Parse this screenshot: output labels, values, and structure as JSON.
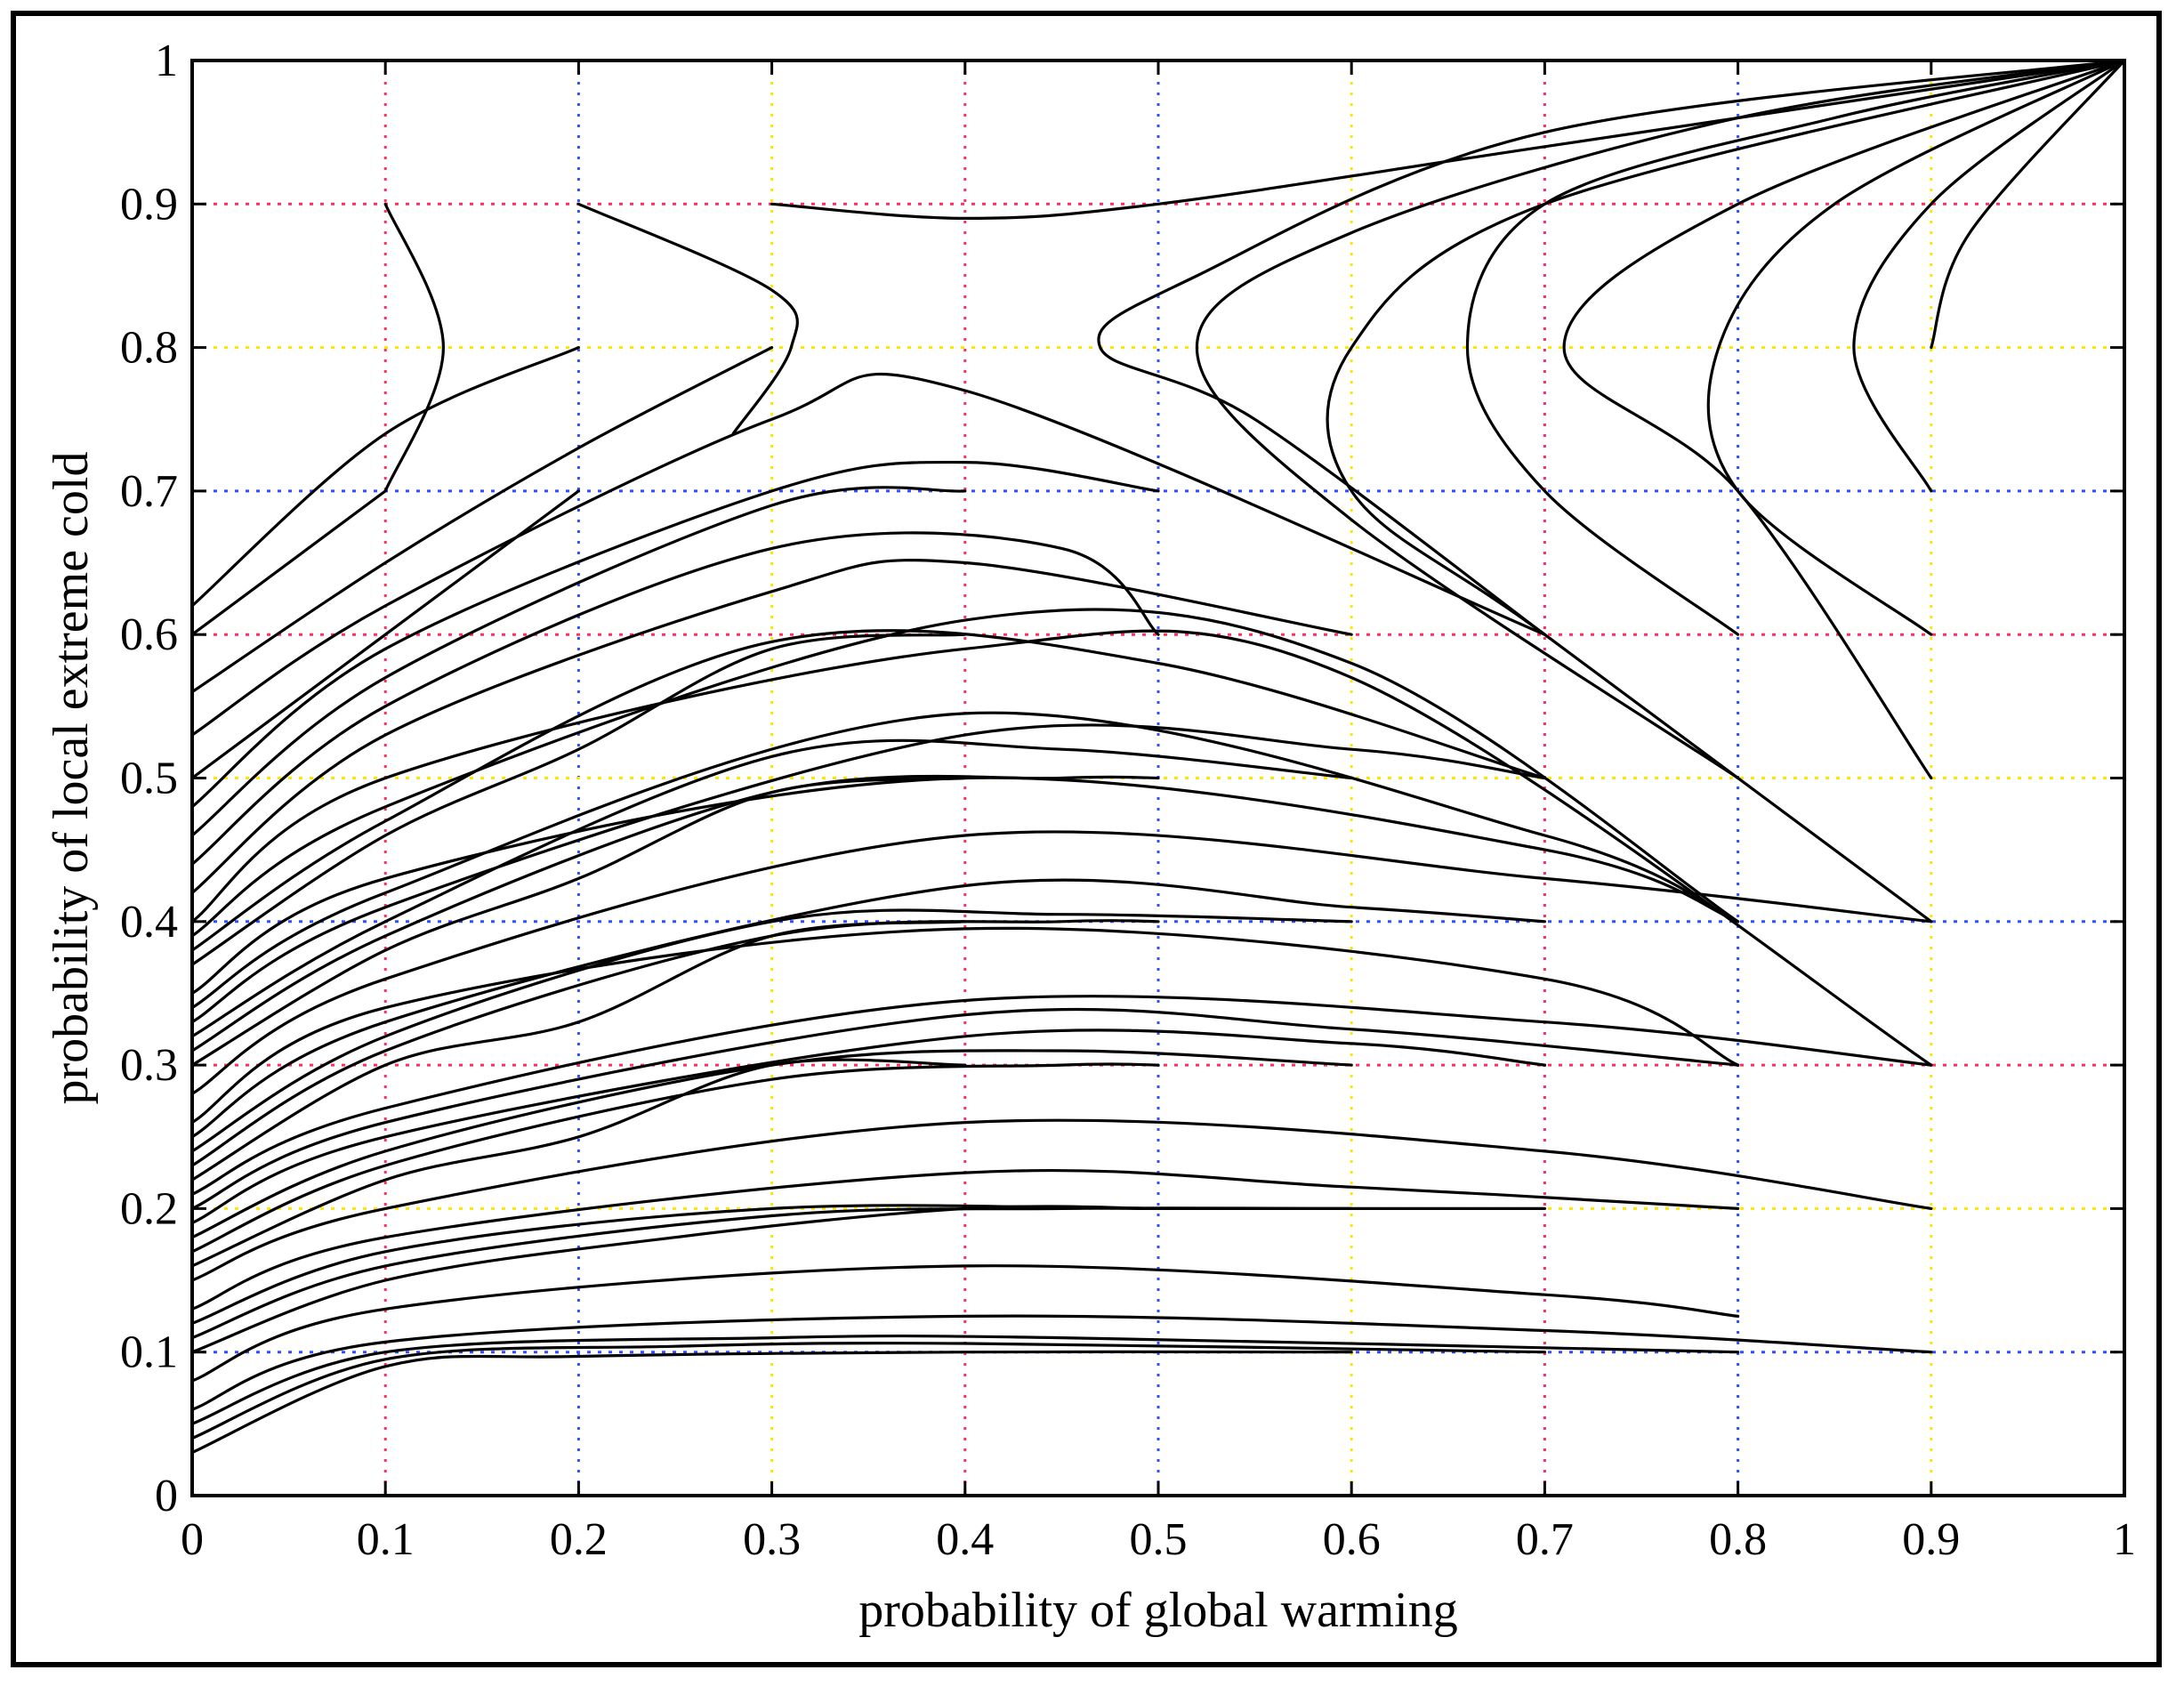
{
  "chart_data": {
    "type": "line",
    "title": "",
    "xlabel": "probability of global warming",
    "ylabel": "probability of local extreme cold",
    "xlim": [
      0,
      1
    ],
    "ylim": [
      0,
      1
    ],
    "x_ticks": [
      "0",
      "0.1",
      "0.2",
      "0.3",
      "0.4",
      "0.5",
      "0.6",
      "0.7",
      "0.8",
      "0.9",
      "1"
    ],
    "y_ticks": [
      "0",
      "0.1",
      "0.2",
      "0.3",
      "0.4",
      "0.5",
      "0.6",
      "0.7",
      "0.8",
      "0.9",
      "1"
    ],
    "grid": "dotted colored",
    "grid_colors": [
      "#ffe600",
      "#ff3060",
      "#3050ff"
    ],
    "legend": "none",
    "line_color": "#000000",
    "series": [
      {
        "points": [
          [
            0.0,
            0.03
          ],
          [
            0.1,
            0.09
          ],
          [
            0.2,
            0.097
          ],
          [
            0.4,
            0.1
          ],
          [
            0.6,
            0.1
          ]
        ]
      },
      {
        "points": [
          [
            0.0,
            0.04
          ],
          [
            0.1,
            0.095
          ],
          [
            0.25,
            0.104
          ],
          [
            0.4,
            0.106
          ],
          [
            0.7,
            0.1
          ]
        ]
      },
      {
        "points": [
          [
            0.0,
            0.05
          ],
          [
            0.1,
            0.1
          ],
          [
            0.3,
            0.11
          ],
          [
            0.45,
            0.11
          ],
          [
            0.8,
            0.1
          ]
        ]
      },
      {
        "points": [
          [
            0.0,
            0.06
          ],
          [
            0.1,
            0.107
          ],
          [
            0.4,
            0.125
          ],
          [
            0.7,
            0.115
          ],
          [
            0.9,
            0.1
          ]
        ]
      },
      {
        "points": [
          [
            0.0,
            0.08
          ],
          [
            0.1,
            0.13
          ],
          [
            0.4,
            0.16
          ],
          [
            0.7,
            0.14
          ],
          [
            0.8,
            0.125
          ]
        ]
      },
      {
        "points": [
          [
            0.0,
            0.1
          ],
          [
            0.1,
            0.15
          ],
          [
            0.25,
            0.18
          ],
          [
            0.4,
            0.2
          ],
          [
            0.5,
            0.2
          ]
        ]
      },
      {
        "points": [
          [
            0.0,
            0.11
          ],
          [
            0.1,
            0.16
          ],
          [
            0.3,
            0.195
          ],
          [
            0.45,
            0.2
          ],
          [
            0.6,
            0.2
          ]
        ]
      },
      {
        "points": [
          [
            0.0,
            0.12
          ],
          [
            0.1,
            0.17
          ],
          [
            0.3,
            0.2
          ],
          [
            0.5,
            0.2
          ],
          [
            0.7,
            0.2
          ]
        ]
      },
      {
        "points": [
          [
            0.0,
            0.13
          ],
          [
            0.1,
            0.18
          ],
          [
            0.4,
            0.225
          ],
          [
            0.6,
            0.215
          ],
          [
            0.8,
            0.2
          ]
        ]
      },
      {
        "points": [
          [
            0.0,
            0.15
          ],
          [
            0.1,
            0.2
          ],
          [
            0.4,
            0.26
          ],
          [
            0.7,
            0.24
          ],
          [
            0.9,
            0.2
          ]
        ]
      },
      {
        "points": [
          [
            0.0,
            0.16
          ],
          [
            0.1,
            0.22
          ],
          [
            0.2,
            0.25
          ],
          [
            0.3,
            0.3
          ],
          [
            0.4,
            0.3
          ]
        ]
      },
      {
        "points": [
          [
            0.0,
            0.17
          ],
          [
            0.1,
            0.23
          ],
          [
            0.3,
            0.29
          ],
          [
            0.45,
            0.3
          ],
          [
            0.5,
            0.3
          ]
        ]
      },
      {
        "points": [
          [
            0.0,
            0.18
          ],
          [
            0.1,
            0.24
          ],
          [
            0.3,
            0.3
          ],
          [
            0.45,
            0.31
          ],
          [
            0.6,
            0.3
          ]
        ]
      },
      {
        "points": [
          [
            0.0,
            0.19
          ],
          [
            0.1,
            0.25
          ],
          [
            0.4,
            0.32
          ],
          [
            0.6,
            0.315
          ],
          [
            0.7,
            0.3
          ]
        ]
      },
      {
        "points": [
          [
            0.0,
            0.2
          ],
          [
            0.1,
            0.26
          ],
          [
            0.4,
            0.335
          ],
          [
            0.6,
            0.325
          ],
          [
            0.8,
            0.3
          ]
        ]
      },
      {
        "points": [
          [
            0.0,
            0.21
          ],
          [
            0.1,
            0.27
          ],
          [
            0.4,
            0.345
          ],
          [
            0.7,
            0.33
          ],
          [
            0.9,
            0.3
          ]
        ]
      },
      {
        "points": [
          [
            0.0,
            0.22
          ],
          [
            0.1,
            0.3
          ],
          [
            0.2,
            0.33
          ],
          [
            0.3,
            0.39
          ],
          [
            0.4,
            0.4
          ]
        ]
      },
      {
        "points": [
          [
            0.0,
            0.23
          ],
          [
            0.1,
            0.31
          ],
          [
            0.3,
            0.39
          ],
          [
            0.45,
            0.4
          ],
          [
            0.5,
            0.4
          ]
        ]
      },
      {
        "points": [
          [
            0.0,
            0.24
          ],
          [
            0.1,
            0.32
          ],
          [
            0.3,
            0.4
          ],
          [
            0.45,
            0.405
          ],
          [
            0.6,
            0.4
          ]
        ]
      },
      {
        "points": [
          [
            0.0,
            0.25
          ],
          [
            0.1,
            0.33
          ],
          [
            0.4,
            0.425
          ],
          [
            0.6,
            0.41
          ],
          [
            0.7,
            0.4
          ]
        ]
      },
      {
        "points": [
          [
            0.0,
            0.26
          ],
          [
            0.1,
            0.34
          ],
          [
            0.4,
            0.395
          ],
          [
            0.7,
            0.36
          ],
          [
            0.8,
            0.3
          ]
        ]
      },
      {
        "points": [
          [
            0.0,
            0.28
          ],
          [
            0.1,
            0.36
          ],
          [
            0.4,
            0.46
          ],
          [
            0.7,
            0.43
          ],
          [
            0.9,
            0.4
          ]
        ]
      },
      {
        "points": [
          [
            0.0,
            0.3
          ],
          [
            0.1,
            0.38
          ],
          [
            0.2,
            0.43
          ],
          [
            0.3,
            0.49
          ],
          [
            0.4,
            0.5
          ]
        ]
      },
      {
        "points": [
          [
            0.0,
            0.31
          ],
          [
            0.1,
            0.39
          ],
          [
            0.3,
            0.49
          ],
          [
            0.45,
            0.5
          ],
          [
            0.5,
            0.5
          ]
        ]
      },
      {
        "points": [
          [
            0.0,
            0.32
          ],
          [
            0.1,
            0.4
          ],
          [
            0.3,
            0.515
          ],
          [
            0.45,
            0.52
          ],
          [
            0.6,
            0.5
          ]
        ]
      },
      {
        "points": [
          [
            0.0,
            0.33
          ],
          [
            0.1,
            0.41
          ],
          [
            0.4,
            0.53
          ],
          [
            0.6,
            0.52
          ],
          [
            0.7,
            0.5
          ]
        ]
      },
      {
        "points": [
          [
            0.0,
            0.34
          ],
          [
            0.1,
            0.42
          ],
          [
            0.4,
            0.545
          ],
          [
            0.7,
            0.46
          ],
          [
            0.8,
            0.4
          ]
        ]
      },
      {
        "points": [
          [
            0.0,
            0.35
          ],
          [
            0.1,
            0.43
          ],
          [
            0.4,
            0.5
          ],
          [
            0.7,
            0.45
          ],
          [
            0.8,
            0.4
          ]
        ]
      },
      {
        "points": [
          [
            0.0,
            0.37
          ],
          [
            0.1,
            0.46
          ],
          [
            0.2,
            0.52
          ],
          [
            0.3,
            0.59
          ],
          [
            0.4,
            0.6
          ]
        ]
      },
      {
        "points": [
          [
            0.0,
            0.38
          ],
          [
            0.1,
            0.47
          ],
          [
            0.3,
            0.595
          ],
          [
            0.5,
            0.58
          ],
          [
            0.7,
            0.5
          ]
        ]
      },
      {
        "points": [
          [
            0.0,
            0.39
          ],
          [
            0.1,
            0.48
          ],
          [
            0.4,
            0.61
          ],
          [
            0.6,
            0.58
          ],
          [
            0.8,
            0.4
          ]
        ]
      },
      {
        "points": [
          [
            0.0,
            0.4
          ],
          [
            0.1,
            0.5
          ],
          [
            0.4,
            0.59
          ],
          [
            0.6,
            0.57
          ],
          [
            0.9,
            0.3
          ]
        ]
      },
      {
        "points": [
          [
            0.0,
            0.42
          ],
          [
            0.1,
            0.53
          ],
          [
            0.3,
            0.63
          ],
          [
            0.4,
            0.65
          ],
          [
            0.6,
            0.6
          ]
        ]
      },
      {
        "points": [
          [
            0.0,
            0.44
          ],
          [
            0.1,
            0.55
          ],
          [
            0.3,
            0.66
          ],
          [
            0.45,
            0.66
          ],
          [
            0.5,
            0.6
          ]
        ]
      },
      {
        "points": [
          [
            0.0,
            0.46
          ],
          [
            0.1,
            0.57
          ],
          [
            0.3,
            0.69
          ],
          [
            0.4,
            0.7
          ]
        ]
      },
      {
        "points": [
          [
            0.0,
            0.48
          ],
          [
            0.1,
            0.59
          ],
          [
            0.3,
            0.7
          ],
          [
            0.4,
            0.72
          ],
          [
            0.5,
            0.7
          ]
        ]
      },
      {
        "points": [
          [
            0.0,
            0.5
          ],
          [
            0.1,
            0.6
          ],
          [
            0.2,
            0.7
          ]
        ]
      },
      {
        "points": [
          [
            0.0,
            0.53
          ],
          [
            0.1,
            0.62
          ],
          [
            0.3,
            0.75
          ],
          [
            0.4,
            0.77
          ],
          [
            0.7,
            0.6
          ]
        ]
      },
      {
        "points": [
          [
            0.0,
            0.56
          ],
          [
            0.1,
            0.65
          ],
          [
            0.2,
            0.73
          ],
          [
            0.3,
            0.8
          ]
        ]
      },
      {
        "points": [
          [
            0.0,
            0.6
          ],
          [
            0.1,
            0.7
          ]
        ]
      },
      {
        "points": [
          [
            0.0,
            0.62
          ],
          [
            0.1,
            0.74
          ],
          [
            0.2,
            0.8
          ]
        ]
      },
      {
        "points": [
          [
            0.1,
            0.7
          ],
          [
            0.13,
            0.8
          ],
          [
            0.1,
            0.9
          ]
        ]
      },
      {
        "points": [
          [
            0.2,
            0.9
          ],
          [
            0.3,
            0.84
          ],
          [
            0.31,
            0.8
          ],
          [
            0.28,
            0.74
          ]
        ]
      },
      {
        "points": [
          [
            0.3,
            0.9
          ],
          [
            0.4,
            0.89
          ],
          [
            0.5,
            0.9
          ],
          [
            0.7,
            0.94
          ],
          [
            1.0,
            1.0
          ]
        ]
      },
      {
        "points": [
          [
            0.7,
            0.6
          ],
          [
            0.55,
            0.75
          ],
          [
            0.47,
            0.8
          ],
          [
            0.52,
            0.85
          ],
          [
            0.7,
            0.95
          ],
          [
            1.0,
            1.0
          ]
        ]
      },
      {
        "points": [
          [
            0.8,
            0.5
          ],
          [
            0.6,
            0.68
          ],
          [
            0.52,
            0.8
          ],
          [
            0.6,
            0.88
          ],
          [
            0.8,
            0.96
          ],
          [
            1.0,
            1.0
          ]
        ]
      },
      {
        "points": [
          [
            0.9,
            0.4
          ],
          [
            0.7,
            0.6
          ],
          [
            0.6,
            0.7
          ],
          [
            0.6,
            0.8
          ],
          [
            0.7,
            0.9
          ],
          [
            1.0,
            1.0
          ]
        ]
      },
      {
        "points": [
          [
            0.8,
            0.6
          ],
          [
            0.7,
            0.7
          ],
          [
            0.66,
            0.8
          ],
          [
            0.7,
            0.9
          ],
          [
            0.85,
            0.96
          ],
          [
            1.0,
            1.0
          ]
        ]
      },
      {
        "points": [
          [
            0.9,
            0.5
          ],
          [
            0.8,
            0.7
          ],
          [
            0.71,
            0.8
          ],
          [
            0.8,
            0.9
          ],
          [
            1.0,
            1.0
          ]
        ]
      },
      {
        "points": [
          [
            0.9,
            0.6
          ],
          [
            0.8,
            0.7
          ],
          [
            0.79,
            0.8
          ],
          [
            0.85,
            0.9
          ],
          [
            1.0,
            1.0
          ]
        ]
      },
      {
        "points": [
          [
            0.9,
            0.7
          ],
          [
            0.86,
            0.8
          ],
          [
            0.9,
            0.9
          ],
          [
            1.0,
            1.0
          ]
        ]
      },
      {
        "points": [
          [
            0.9,
            0.8
          ],
          [
            0.92,
            0.88
          ],
          [
            1.0,
            1.0
          ]
        ]
      }
    ]
  }
}
